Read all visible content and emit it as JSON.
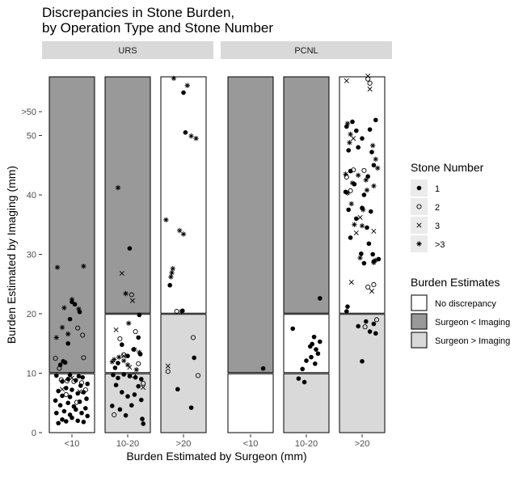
{
  "chart_data": {
    "type": "scatter",
    "title": "Discrepancies in Stone Burden,\nby Operation Type and Stone Number",
    "title_lines": [
      "Discrepancies in Stone Burden,",
      "by Operation Type and Stone Number"
    ],
    "xlabel": "Burden Estimated by Surgeon (mm)",
    "ylabel": "Burden Estimated by Imaging (mm)",
    "facets": [
      "URS",
      "PCNL"
    ],
    "x_categories": [
      "<10",
      "10-20",
      ">20"
    ],
    "y_ticks": [
      "0",
      "10",
      "20",
      "30",
      "40",
      "50",
      ">50"
    ],
    "y_tick_values": [
      0,
      10,
      20,
      30,
      40,
      50,
      54
    ],
    "ylim": [
      0,
      60
    ],
    "grid": false,
    "legend_stone": {
      "title": "Stone Number",
      "items": [
        {
          "label": "1",
          "marker": "filled-circle"
        },
        {
          "label": "2",
          "marker": "open-circle"
        },
        {
          "label": "3",
          "marker": "cross"
        },
        {
          "label": ">3",
          "marker": "asterisk"
        }
      ]
    },
    "legend_burden": {
      "title": "Burden Estimates",
      "items": [
        {
          "label": "No discrepancy",
          "color": "#ffffff"
        },
        {
          "label": "Surgeon < Imaging",
          "color": "#999999"
        },
        {
          "label": "Surgeon > Imaging",
          "color": "#d9d9d9"
        }
      ]
    },
    "region_colors": {
      "no_discrepancy": "#ffffff",
      "surgeon_less": "#999999",
      "surgeon_greater": "#d9d9d9"
    },
    "points": {
      "URS": {
        "<10": {
          "1": [
            [
              -0.7,
              1.6
            ],
            [
              -0.5,
              2.2
            ],
            [
              -0.3,
              1.9
            ],
            [
              0.0,
              2.5
            ],
            [
              0.3,
              2.0
            ],
            [
              0.6,
              1.8
            ],
            [
              0.8,
              2.8
            ],
            [
              -0.8,
              3.3
            ],
            [
              -0.4,
              3.6
            ],
            [
              -0.1,
              3.0
            ],
            [
              0.2,
              3.9
            ],
            [
              0.5,
              3.3
            ],
            [
              0.7,
              4.1
            ],
            [
              -0.6,
              4.6
            ],
            [
              -0.2,
              5.0
            ],
            [
              0.1,
              4.4
            ],
            [
              0.4,
              5.2
            ],
            [
              0.75,
              5.7
            ],
            [
              -0.85,
              5.4
            ],
            [
              -0.5,
              6.2
            ],
            [
              -0.1,
              6.0
            ],
            [
              0.3,
              6.6
            ],
            [
              0.6,
              6.8
            ],
            [
              -0.7,
              7.0
            ],
            [
              -0.3,
              7.5
            ],
            [
              0.0,
              7.2
            ],
            [
              0.45,
              7.9
            ],
            [
              0.8,
              8.2
            ],
            [
              -0.5,
              8.6
            ],
            [
              -0.2,
              9.0
            ],
            [
              0.2,
              8.8
            ],
            [
              0.55,
              9.3
            ],
            [
              -0.8,
              9.6
            ],
            [
              -0.1,
              9.7
            ],
            [
              0.35,
              9.5
            ],
            [
              -0.6,
              11.4
            ],
            [
              -0.35,
              11.8
            ],
            [
              -0.2,
              15.0
            ],
            [
              0.0,
              22.0
            ],
            [
              0.15,
              21.6
            ],
            [
              0.4,
              20.3
            ],
            [
              -0.1,
              19.1
            ],
            [
              -0.45,
              12.0
            ]
          ],
          "2": [
            [
              -0.55,
              8.9
            ],
            [
              -0.25,
              8.7
            ],
            [
              0.1,
              8.6
            ],
            [
              0.5,
              8.4
            ],
            [
              0.7,
              7.2
            ],
            [
              -0.3,
              6.4
            ],
            [
              0.25,
              5.1
            ],
            [
              -0.65,
              10.8
            ],
            [
              0.6,
              12.6
            ],
            [
              -0.85,
              12.5
            ],
            [
              0.3,
              17.6
            ],
            [
              0.55,
              16.4
            ]
          ],
          "3": [
            [
              0.0,
              9.2
            ],
            [
              -0.5,
              7.3
            ],
            [
              0.4,
              6.9
            ]
          ],
          ">3": [
            [
              -0.75,
              27.8
            ],
            [
              0.6,
              28.0
            ],
            [
              -0.4,
              21.0
            ],
            [
              0.0,
              22.4
            ],
            [
              0.35,
              20.8
            ],
            [
              -0.5,
              17.7
            ],
            [
              -0.8,
              16.0
            ],
            [
              -0.2,
              16.6
            ]
          ]
        },
        "10-20": {
          "1": [
            [
              -0.75,
              9.7
            ],
            [
              -0.5,
              9.2
            ],
            [
              -0.2,
              9.8
            ],
            [
              0.1,
              9.5
            ],
            [
              0.4,
              9.3
            ],
            [
              0.7,
              9.0
            ],
            [
              -0.6,
              8.0
            ],
            [
              -0.3,
              6.8
            ],
            [
              0.0,
              6.1
            ],
            [
              0.35,
              6.4
            ],
            [
              0.7,
              5.5
            ],
            [
              -0.8,
              4.5
            ],
            [
              -0.4,
              3.9
            ],
            [
              0.2,
              4.6
            ],
            [
              0.75,
              2.3
            ],
            [
              -0.1,
              2.9
            ],
            [
              0.55,
              7.8
            ],
            [
              0.8,
              1.5
            ],
            [
              -0.5,
              11.7
            ],
            [
              -0.3,
              14.8
            ],
            [
              0.0,
              12.9
            ],
            [
              0.3,
              14.0
            ],
            [
              0.6,
              19.8
            ],
            [
              0.65,
              13.2
            ],
            [
              -0.65,
              10.9
            ],
            [
              0.1,
              31.0
            ],
            [
              0.55,
              16.0
            ]
          ],
          "2": [
            [
              -0.4,
              15.8
            ],
            [
              0.2,
              23.2
            ],
            [
              0.4,
              17.0
            ],
            [
              -0.7,
              3.0
            ],
            [
              0.3,
              9.6
            ],
            [
              0.8,
              8.3
            ],
            [
              -0.2,
              13.1
            ],
            [
              0.55,
              11.6
            ]
          ],
          "3": [
            [
              -0.6,
              17.3
            ],
            [
              -0.3,
              26.8
            ],
            [
              0.25,
              22.2
            ],
            [
              0.8,
              7.6
            ],
            [
              -0.2,
              12.9
            ],
            [
              0.1,
              11.0
            ]
          ],
          ">3": [
            [
              -0.5,
              41.2
            ],
            [
              -0.1,
              23.4
            ],
            [
              0.05,
              18.4
            ],
            [
              -0.7,
              12.3
            ],
            [
              -0.45,
              12.7
            ],
            [
              -0.2,
              12.1
            ],
            [
              0.35,
              14.0
            ],
            [
              0.6,
              13.5
            ],
            [
              0.0,
              11.4
            ],
            [
              -0.8,
              11.9
            ],
            [
              0.45,
              10.6
            ]
          ]
        },
        ">20": {
          "1": [
            [
              0.0,
              57.2
            ],
            [
              0.1,
              50.5
            ],
            [
              -0.7,
              24.8
            ],
            [
              -0.05,
              20.5
            ],
            [
              0.55,
              12.6
            ],
            [
              -0.3,
              7.3
            ],
            [
              0.4,
              4.2
            ]
          ],
          "2": [
            [
              0.5,
              16.0
            ],
            [
              0.75,
              9.6
            ],
            [
              -0.8,
              10.3
            ],
            [
              -0.35,
              20.4
            ]
          ],
          "3": [
            [
              -0.8,
              11.2
            ]
          ],
          ">3": [
            [
              -0.5,
              59.6
            ],
            [
              0.2,
              58.4
            ],
            [
              0.4,
              49.9
            ],
            [
              0.65,
              49.5
            ],
            [
              -0.9,
              35.8
            ],
            [
              -0.2,
              34.0
            ],
            [
              0.0,
              33.4
            ],
            [
              -0.55,
              27.6
            ],
            [
              -0.6,
              26.9
            ],
            [
              -0.65,
              26.2
            ],
            [
              -0.1,
              20.4
            ]
          ]
        }
      },
      "PCNL": {
        "<10": {
          "1": [
            [
              0.65,
              10.8
            ]
          ],
          "2": [],
          "3": [],
          ">3": []
        },
        "10-20": {
          "1": [
            [
              0.7,
              22.6
            ],
            [
              -0.7,
              17.5
            ],
            [
              -0.2,
              10.7
            ],
            [
              0.0,
              12.1
            ],
            [
              0.3,
              14.9
            ],
            [
              0.5,
              14.0
            ],
            [
              0.7,
              15.3
            ],
            [
              0.2,
              14.5
            ],
            [
              0.4,
              16.1
            ],
            [
              0.6,
              13.3
            ],
            [
              0.25,
              12.7
            ],
            [
              0.45,
              11.6
            ],
            [
              -0.4,
              9.1
            ],
            [
              -0.1,
              8.5
            ]
          ],
          "2": [],
          "3": [],
          ">3": []
        },
        ">20": {
          "1": [
            [
              -0.8,
              51.5
            ],
            [
              -0.5,
              52.3
            ],
            [
              -0.3,
              50.8
            ],
            [
              0.0,
              49.5
            ],
            [
              0.4,
              51.0
            ],
            [
              0.7,
              52.6
            ],
            [
              -0.7,
              47.5
            ],
            [
              -0.2,
              48.0
            ],
            [
              0.5,
              47.2
            ],
            [
              -0.6,
              44.0
            ],
            [
              0.3,
              43.1
            ],
            [
              0.6,
              45.0
            ],
            [
              -0.85,
              40.5
            ],
            [
              -0.4,
              41.8
            ],
            [
              0.1,
              40.0
            ],
            [
              -0.7,
              37.5
            ],
            [
              0.0,
              37.8
            ],
            [
              0.45,
              37.2
            ],
            [
              -0.3,
              36.0
            ],
            [
              0.25,
              34.5
            ],
            [
              -0.6,
              32.8
            ],
            [
              0.35,
              31.8
            ],
            [
              -0.05,
              30.1
            ],
            [
              0.55,
              30.0
            ],
            [
              0.85,
              29.2
            ],
            [
              0.6,
              28.8
            ],
            [
              0.1,
              28.5
            ],
            [
              -0.75,
              21.2
            ],
            [
              -0.8,
              20.4
            ],
            [
              0.2,
              18.7
            ],
            [
              0.4,
              17.0
            ],
            [
              0.6,
              18.3
            ],
            [
              -0.2,
              17.9
            ],
            [
              0.7,
              16.7
            ],
            [
              0.0,
              12.0
            ]
          ],
          "2": [
            [
              0.3,
              59.5
            ],
            [
              0.4,
              58.8
            ],
            [
              -0.8,
              43.0
            ],
            [
              -0.45,
              44.2
            ],
            [
              0.1,
              44.1
            ],
            [
              0.6,
              24.9
            ],
            [
              0.3,
              24.5
            ],
            [
              0.75,
              19.0
            ],
            [
              -0.6,
              40.7
            ],
            [
              0.15,
              17.8
            ]
          ],
          "3": [
            [
              -0.8,
              59.2
            ],
            [
              0.3,
              62.5
            ],
            [
              0.4,
              57.8
            ],
            [
              -0.45,
              49.5
            ],
            [
              -0.1,
              36.2
            ],
            [
              -0.3,
              33.6
            ],
            [
              0.6,
              33.9
            ],
            [
              -0.55,
              25.3
            ],
            [
              0.5,
              23.8
            ]
          ],
          ">3": [
            [
              -0.75,
              52.0
            ],
            [
              -0.6,
              50.2
            ],
            [
              -0.65,
              48.8
            ],
            [
              -0.85,
              43.5
            ],
            [
              -0.5,
              42.0
            ],
            [
              -0.2,
              43.3
            ],
            [
              0.2,
              42.5
            ],
            [
              0.55,
              48.3
            ],
            [
              0.7,
              46.0
            ],
            [
              0.8,
              44.5
            ],
            [
              0.25,
              40.8
            ],
            [
              0.6,
              41.5
            ],
            [
              -0.75,
              40.3
            ],
            [
              -0.55,
              38.5
            ],
            [
              0.05,
              37.5
            ],
            [
              -0.4,
              35.0
            ],
            [
              0.0,
              34.8
            ],
            [
              0.7,
              29.0
            ],
            [
              0.6,
              28.6
            ],
            [
              -0.1,
              29.4
            ]
          ]
        }
      }
    }
  }
}
